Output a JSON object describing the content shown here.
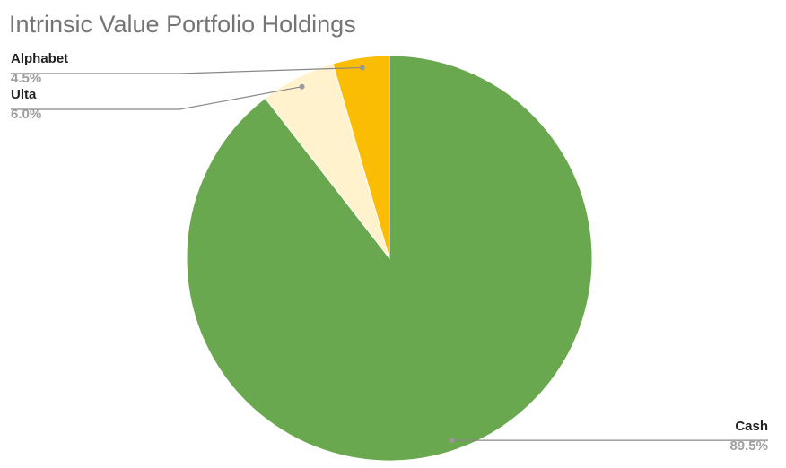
{
  "chart_data": {
    "type": "pie",
    "title": "Intrinsic Value Portfolio Holdings",
    "categories": [
      "Cash",
      "Ulta",
      "Alphabet"
    ],
    "values": [
      89.5,
      6.0,
      4.5
    ],
    "value_labels": [
      "89.5%",
      "6.0%",
      "4.5%"
    ],
    "colors": [
      "#6aa84f",
      "#fff2cc",
      "#fbbc04"
    ]
  }
}
